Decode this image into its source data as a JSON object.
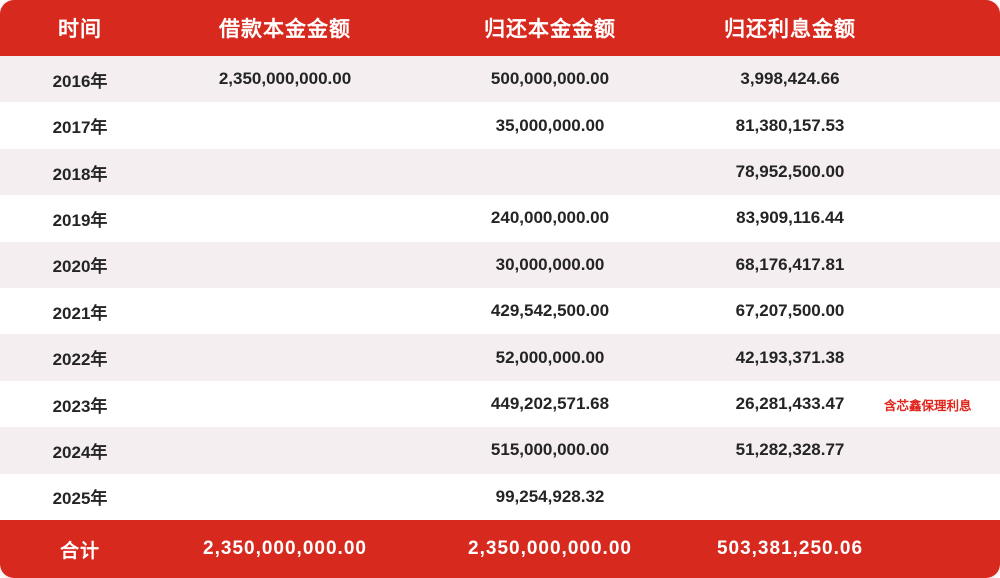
{
  "colors": {
    "header_bg": "#d7291e",
    "row_alt_bg": "#f4eef0",
    "annotation_color": "#e0251c"
  },
  "chart_data": {
    "type": "table",
    "title": "",
    "columns": [
      "时间",
      "借款本金金额",
      "归还本金金额",
      "归还利息金额"
    ],
    "rows": [
      [
        "2016年",
        "2,350,000,000.00",
        "500,000,000.00",
        "3,998,424.66"
      ],
      [
        "2017年",
        "",
        "35,000,000.00",
        "81,380,157.53"
      ],
      [
        "2018年",
        "",
        "",
        "78,952,500.00"
      ],
      [
        "2019年",
        "",
        "240,000,000.00",
        "83,909,116.44"
      ],
      [
        "2020年",
        "",
        "30,000,000.00",
        "68,176,417.81"
      ],
      [
        "2021年",
        "",
        "429,542,500.00",
        "67,207,500.00"
      ],
      [
        "2022年",
        "",
        "52,000,000.00",
        "42,193,371.38"
      ],
      [
        "2023年",
        "",
        "449,202,571.68",
        "26,281,433.47"
      ],
      [
        "2024年",
        "",
        "515,000,000.00",
        "51,282,328.77"
      ],
      [
        "2025年",
        "",
        "99,254,928.32",
        ""
      ],
      [
        "合计",
        "2,350,000,000.00",
        "2,350,000,000.00",
        "503,381,250.06"
      ]
    ],
    "annotations": [
      {
        "row": "2023年",
        "column": "归还利息金额",
        "text": "含芯鑫保理利息"
      }
    ],
    "layout": {
      "header_style": "red-background-white-text",
      "footer_style": "red-background-white-text",
      "body_style": "alternating-pink-white-rows",
      "grid": "off"
    }
  }
}
